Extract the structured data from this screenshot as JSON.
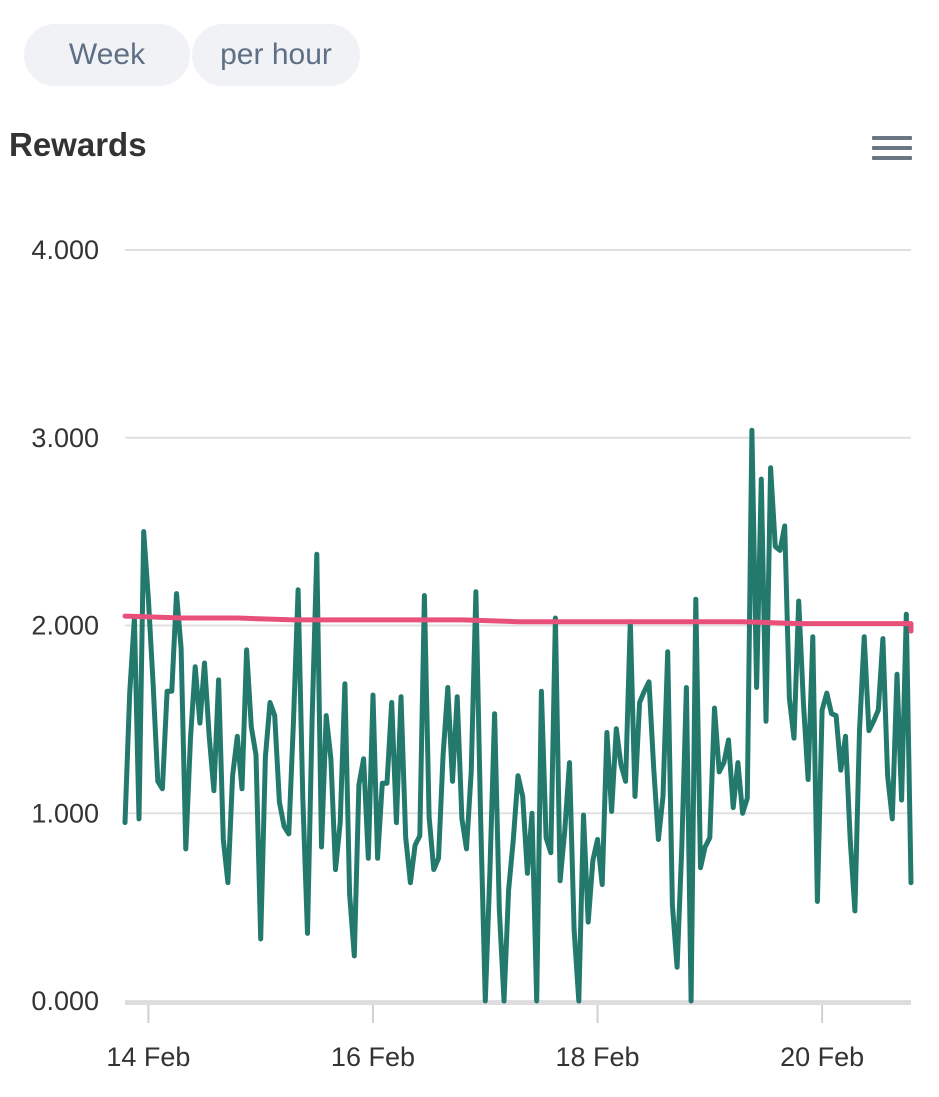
{
  "toolbar": {
    "range_label": "Week",
    "unit_label": "per hour"
  },
  "menu_icon": "hamburger-menu-icon",
  "chart_data": {
    "type": "line",
    "title": "Rewards",
    "xlabel": "",
    "ylabel": "",
    "ylim": [
      0,
      4
    ],
    "xlim": [
      "2024-02-13T19:00",
      "2024-02-20T19:00"
    ],
    "grid": true,
    "legend": "none",
    "y_ticks": [
      "0.000",
      "1.000",
      "2.000",
      "3.000",
      "4.000"
    ],
    "x_ticks": [
      {
        "label": "14 Feb",
        "at": "2024-02-14T00:00"
      },
      {
        "label": "16 Feb",
        "at": "2024-02-16T00:00"
      },
      {
        "label": "18 Feb",
        "at": "2024-02-18T00:00"
      },
      {
        "label": "20 Feb",
        "at": "2024-02-20T00:00"
      }
    ],
    "series": [
      {
        "color": "#237a6c",
        "start": "2024-02-13T19:00",
        "interval_hours": 1,
        "values": [
          0.95,
          1.64,
          2.04,
          0.97,
          2.5,
          2.14,
          1.69,
          1.17,
          1.13,
          1.65,
          1.65,
          2.17,
          1.88,
          0.81,
          1.4,
          1.78,
          1.48,
          1.8,
          1.41,
          1.12,
          1.71,
          0.86,
          0.63,
          1.2,
          1.41,
          1.13,
          1.87,
          1.46,
          1.31,
          0.33,
          1.3,
          1.59,
          1.52,
          1.06,
          0.93,
          0.89,
          1.48,
          2.19,
          1.08,
          0.36,
          1.5,
          2.38,
          0.82,
          1.52,
          1.29,
          0.7,
          0.95,
          1.69,
          0.57,
          0.24,
          1.15,
          1.29,
          0.76,
          1.63,
          0.76,
          1.16,
          1.16,
          1.59,
          0.95,
          1.62,
          0.87,
          0.63,
          0.83,
          0.88,
          2.16,
          0.98,
          0.7,
          0.76,
          1.31,
          1.67,
          1.17,
          1.62,
          0.97,
          0.81,
          1.22,
          2.18,
          0.98,
          0.0,
          0.69,
          1.53,
          0.49,
          0.0,
          0.59,
          0.86,
          1.2,
          1.09,
          0.68,
          1.0,
          0.0,
          1.65,
          0.87,
          0.79,
          2.04,
          0.64,
          0.91,
          1.27,
          0.38,
          0.0,
          0.99,
          0.42,
          0.75,
          0.86,
          0.62,
          1.43,
          1.01,
          1.45,
          1.26,
          1.17,
          2.02,
          1.09,
          1.59,
          1.65,
          1.7,
          1.24,
          0.86,
          1.09,
          1.86,
          0.51,
          0.18,
          0.82,
          1.67,
          0.0,
          2.14,
          0.71,
          0.82,
          0.87,
          1.56,
          1.22,
          1.27,
          1.39,
          1.03,
          1.27,
          1.0,
          1.08,
          3.04,
          1.67,
          2.78,
          1.49,
          2.84,
          2.42,
          2.4,
          2.53,
          1.61,
          1.4,
          2.13,
          1.59,
          1.18,
          1.94,
          0.53,
          1.55,
          1.64,
          1.53,
          1.52,
          1.23,
          1.41,
          0.86,
          0.48,
          1.44,
          1.94,
          1.44,
          1.49,
          1.55,
          1.93,
          1.2,
          0.97,
          1.74,
          1.07,
          2.06,
          0.63
        ]
      },
      {
        "color": "#e8507a",
        "start": "2024-02-13T19:00",
        "interval_hours": 12,
        "values": [
          2.05,
          2.04,
          2.04,
          2.03,
          2.03,
          2.03,
          2.03,
          2.02,
          2.02,
          2.02,
          2.02,
          2.02,
          2.01,
          2.01,
          2.01,
          2.01,
          2.01,
          2.01,
          2.01,
          2.0,
          2.0,
          1.99,
          1.98,
          1.98,
          1.98,
          1.97,
          1.97,
          1.97,
          1.97
        ]
      }
    ]
  }
}
